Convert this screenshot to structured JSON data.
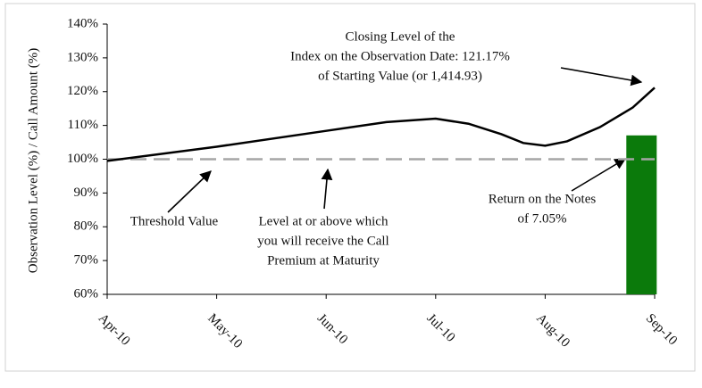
{
  "chart_data": {
    "type": "line",
    "ylabel": "Observation Level (%) / Call Amount (%)",
    "xlim": [
      0,
      5
    ],
    "xticks": [
      {
        "value": 0,
        "label": "Apr-10"
      },
      {
        "value": 1,
        "label": "May-10"
      },
      {
        "value": 2,
        "label": "Jun-10"
      },
      {
        "value": 3,
        "label": "Jul-10"
      },
      {
        "value": 4,
        "label": "Aug-10"
      },
      {
        "value": 5,
        "label": "Sep-10"
      }
    ],
    "ylim": [
      60,
      140
    ],
    "yticks": [
      {
        "value": 60,
        "label": "60%"
      },
      {
        "value": 70,
        "label": "70%"
      },
      {
        "value": 80,
        "label": "80%"
      },
      {
        "value": 90,
        "label": "90%"
      },
      {
        "value": 100,
        "label": "100%"
      },
      {
        "value": 110,
        "label": "110%"
      },
      {
        "value": 120,
        "label": "120%"
      },
      {
        "value": 130,
        "label": "130%"
      },
      {
        "value": 140,
        "label": "140%"
      }
    ],
    "series": [
      {
        "color": "#000000",
        "x": [
          0,
          1,
          2,
          2.55,
          3,
          3.3,
          3.6,
          3.8,
          4,
          4.2,
          4.5,
          4.8,
          5
        ],
        "values": [
          99.5,
          103.7,
          108.4,
          111,
          112,
          110.5,
          107.4,
          104.8,
          104,
          105.3,
          109.5,
          115.3,
          121.17
        ]
      }
    ],
    "threshold": {
      "value": 100,
      "color": "#a6a6a6"
    },
    "bar": {
      "x": 4.88,
      "value": 107.05,
      "color": "#0b7a0b"
    },
    "annotations": [
      {
        "lines": [
          "Closing Level of the",
          "Index on the Observation Date: 121.17%",
          "of Starting Value (or 1,414.93)"
        ]
      },
      {
        "lines": [
          "Threshold Value"
        ]
      },
      {
        "lines": [
          "Level at or above which",
          "you will receive the Call",
          "Premium at Maturity"
        ]
      },
      {
        "lines": [
          "Return on the Notes",
          "of 7.05%"
        ]
      }
    ]
  }
}
